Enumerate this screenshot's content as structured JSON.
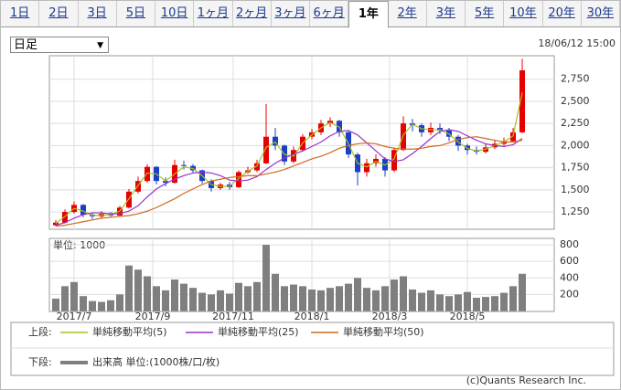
{
  "tabs": [
    "1日",
    "2日",
    "3日",
    "5日",
    "10日",
    "1ヶ月",
    "2ヶ月",
    "3ヶ月",
    "6ヶ月",
    "1年",
    "2年",
    "3年",
    "5年",
    "10年",
    "20年",
    "30年"
  ],
  "selected_tab": 9,
  "dropdown": "日足",
  "timestamp": "18/06/12 15:00",
  "chart_data": [
    {
      "type": "candlestick",
      "up_color": "#e60000",
      "down_color": "#1a3fc8",
      "xlim": [
        -0.7,
        54.5
      ],
      "xticks": [
        {
          "value": 2.0,
          "label": "2017/7"
        },
        {
          "value": 10.6,
          "label": "2017/9"
        },
        {
          "value": 19.4,
          "label": "2017/11"
        },
        {
          "value": 28.0,
          "label": "2018/1"
        },
        {
          "value": 36.5,
          "label": "2018/3"
        },
        {
          "value": 45.0,
          "label": "2018/5"
        }
      ],
      "ylim": [
        1055,
        3015
      ],
      "yticks": [
        {
          "value": 1250,
          "label": "1,250"
        },
        {
          "value": 1500,
          "label": "1,500"
        },
        {
          "value": 1750,
          "label": "1,750"
        },
        {
          "value": 2000,
          "label": "2,000"
        },
        {
          "value": 2250,
          "label": "2,250"
        },
        {
          "value": 2500,
          "label": "2,500"
        },
        {
          "value": 2750,
          "label": "2,750"
        }
      ],
      "grid": true,
      "legend_label": "上段:",
      "open": [
        1100,
        1130,
        1250,
        1330,
        1220,
        1200,
        1230,
        1210,
        1300,
        1480,
        1600,
        1760,
        1600,
        1580,
        1780,
        1770,
        1720,
        1600,
        1520,
        1560,
        1530,
        1700,
        1720,
        1800,
        2100,
        2000,
        1820,
        1950,
        2100,
        2150,
        2250,
        2280,
        2150,
        1900,
        1700,
        1800,
        1850,
        1720,
        1950,
        2250,
        2230,
        2150,
        2200,
        2170,
        2100,
        2000,
        1950,
        1930,
        1980,
        2020,
        2050,
        2150
      ],
      "high": [
        1160,
        1280,
        1370,
        1340,
        1240,
        1260,
        1250,
        1320,
        1510,
        1650,
        1790,
        1770,
        1640,
        1840,
        1830,
        1790,
        1730,
        1620,
        1580,
        1590,
        1720,
        1760,
        1840,
        2470,
        2200,
        2010,
        1990,
        2130,
        2190,
        2290,
        2320,
        2290,
        2160,
        1920,
        1850,
        1900,
        1870,
        1980,
        2330,
        2300,
        2250,
        2260,
        2250,
        2200,
        2120,
        2020,
        1990,
        2020,
        2060,
        2090,
        2200,
        2980
      ],
      "low": [
        1090,
        1120,
        1230,
        1190,
        1170,
        1180,
        1190,
        1200,
        1290,
        1460,
        1580,
        1560,
        1540,
        1570,
        1730,
        1690,
        1570,
        1480,
        1500,
        1500,
        1520,
        1680,
        1700,
        1790,
        1950,
        1780,
        1800,
        1930,
        2070,
        2120,
        2210,
        2100,
        1860,
        1550,
        1650,
        1760,
        1650,
        1700,
        1940,
        2160,
        2100,
        2120,
        2130,
        2050,
        1940,
        1900,
        1900,
        1910,
        1960,
        2000,
        2040,
        2140
      ],
      "close": [
        1130,
        1250,
        1330,
        1220,
        1200,
        1230,
        1210,
        1300,
        1480,
        1600,
        1760,
        1600,
        1580,
        1780,
        1770,
        1720,
        1600,
        1520,
        1560,
        1530,
        1700,
        1720,
        1800,
        2100,
        2000,
        1820,
        1950,
        2100,
        2150,
        2250,
        2280,
        2150,
        1900,
        1700,
        1800,
        1850,
        1720,
        1950,
        2250,
        2230,
        2150,
        2200,
        2170,
        2100,
        2000,
        1950,
        1930,
        1980,
        2020,
        2050,
        2150,
        2850
      ],
      "series": [
        {
          "name": "単純移動平均(5)",
          "color": "#a8c020",
          "values": [
            1120,
            1200,
            1290,
            1260,
            1210,
            1215,
            1220,
            1260,
            1400,
            1550,
            1690,
            1680,
            1600,
            1680,
            1760,
            1740,
            1660,
            1560,
            1540,
            1540,
            1630,
            1710,
            1770,
            1980,
            2040,
            1900,
            1880,
            2030,
            2120,
            2200,
            2260,
            2210,
            2020,
            1800,
            1760,
            1820,
            1780,
            1850,
            2120,
            2240,
            2190,
            2180,
            2180,
            2130,
            2040,
            1970,
            1940,
            1960,
            2000,
            2040,
            2110,
            2600
          ]
        },
        {
          "name": "単純移動平均(25)",
          "color": "#9933cc",
          "values": [
            1100,
            1130,
            1180,
            1220,
            1240,
            1240,
            1230,
            1230,
            1260,
            1320,
            1420,
            1510,
            1570,
            1620,
            1660,
            1690,
            1700,
            1690,
            1660,
            1610,
            1600,
            1610,
            1650,
            1730,
            1800,
            1860,
            1900,
            1940,
            1990,
            2040,
            2110,
            2160,
            2170,
            2120,
            2030,
            1940,
            1850,
            1820,
            1840,
            1910,
            1990,
            2080,
            2160,
            2180,
            2160,
            2110,
            2060,
            2020,
            2000,
            1990,
            2010,
            2080
          ]
        },
        {
          "name": "単純移動平均(50)",
          "color": "#d2691e",
          "values": [
            1090,
            1100,
            1120,
            1140,
            1160,
            1180,
            1190,
            1200,
            1210,
            1230,
            1260,
            1300,
            1350,
            1400,
            1460,
            1510,
            1560,
            1600,
            1620,
            1640,
            1650,
            1660,
            1660,
            1680,
            1700,
            1730,
            1770,
            1810,
            1850,
            1880,
            1920,
            1970,
            2000,
            2020,
            2030,
            2020,
            1990,
            1970,
            1960,
            1960,
            1970,
            1990,
            2000,
            2030,
            2070,
            2090,
            2100,
            2080,
            2060,
            2040,
            2040,
            2060
          ]
        }
      ]
    },
    {
      "type": "bar",
      "unit_label": "単位: 1000",
      "legend_label": "下段:",
      "xlim": [
        -0.7,
        54.5
      ],
      "ylim": [
        0,
        878
      ],
      "yticks": [
        200,
        400,
        600,
        800
      ],
      "grid": true,
      "series": [
        {
          "name": "出来高 単位:(1000株/口/枚)",
          "color": "#7f7f7f",
          "values": [
            150,
            300,
            350,
            180,
            120,
            110,
            130,
            200,
            550,
            500,
            420,
            300,
            250,
            380,
            330,
            280,
            220,
            200,
            250,
            210,
            340,
            300,
            350,
            800,
            450,
            300,
            320,
            300,
            260,
            250,
            280,
            300,
            330,
            400,
            280,
            250,
            300,
            380,
            420,
            260,
            220,
            250,
            200,
            180,
            200,
            230,
            160,
            170,
            180,
            220,
            300,
            450
          ]
        }
      ]
    }
  ],
  "credit": "(c)Quants Research Inc."
}
